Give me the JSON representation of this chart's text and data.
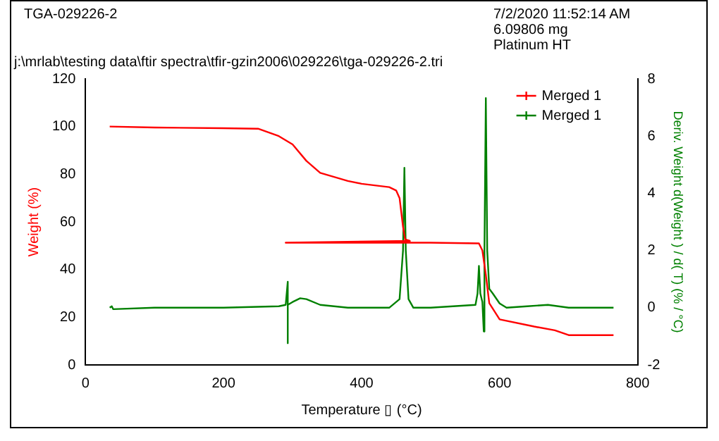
{
  "chart_data": {
    "type": "line",
    "title": "TGA-029226-2",
    "annotations": [
      "7/2/2020 11:52:14 AM",
      "6.09806 mg",
      "Platinum HT",
      "j:\\mrlab\\testing data\\ftir spectra\\tfir-gzin2006\\029226\\tga-029226-2.tri"
    ],
    "xlabel": "Temperature ▯ (°C)",
    "ylabel": "Weight (%)",
    "y2label": "Deriv. Weight d(Weight ) / d( T) (% / °C)",
    "xlim": [
      0,
      800
    ],
    "xticks": [
      0,
      200,
      400,
      600,
      800
    ],
    "ylim": [
      0,
      120
    ],
    "yticks": [
      0,
      20,
      40,
      60,
      80,
      100,
      120
    ],
    "y2lim": [
      -2,
      8
    ],
    "y2ticks": [
      -2,
      0,
      2,
      4,
      6,
      8
    ],
    "grid": false,
    "legend": "top right",
    "series": [
      {
        "name": "Merged 1",
        "color": "#ff0000",
        "x": [
          35,
          100,
          200,
          250,
          280,
          300,
          320,
          340,
          380,
          400,
          440,
          450,
          455,
          460,
          463,
          470,
          290,
          400,
          500,
          570,
          575,
          580,
          585,
          600,
          650,
          680,
          700,
          765
        ],
        "values": [
          100,
          99.6,
          99.3,
          99.1,
          96,
          92.5,
          85.6,
          80.6,
          77.2,
          76,
          74.6,
          73.2,
          70,
          58,
          52.7,
          52,
          51.3,
          51.3,
          51.3,
          51,
          48,
          37.8,
          25.9,
          19.1,
          16.1,
          14.5,
          12.5,
          12.5
        ]
      },
      {
        "name": "Merged 1",
        "color": "#008000",
        "axis": "y2",
        "x": [
          35,
          38,
          40,
          100,
          200,
          280,
          290,
          293,
          293,
          293,
          300,
          311,
          320,
          340,
          380,
          440,
          455,
          460,
          462,
          464,
          468,
          475,
          500,
          565,
          568,
          570,
          572,
          575,
          577,
          578,
          578,
          580,
          582,
          585,
          590,
          600,
          610,
          640,
          670,
          700,
          765
        ],
        "values": [
          0,
          0.05,
          -0.05,
          0,
          0,
          0.05,
          0.1,
          0.91,
          -1.24,
          0.1,
          0.2,
          0.33,
          0.3,
          0.1,
          0,
          0,
          0.3,
          2,
          4.89,
          2,
          0.3,
          0,
          0,
          0.1,
          0.5,
          1.46,
          0.5,
          0.2,
          -0.83,
          -0.83,
          2,
          7.33,
          2,
          0.66,
          0.5,
          0.15,
          0,
          0.05,
          0.1,
          0,
          0
        ]
      }
    ]
  }
}
